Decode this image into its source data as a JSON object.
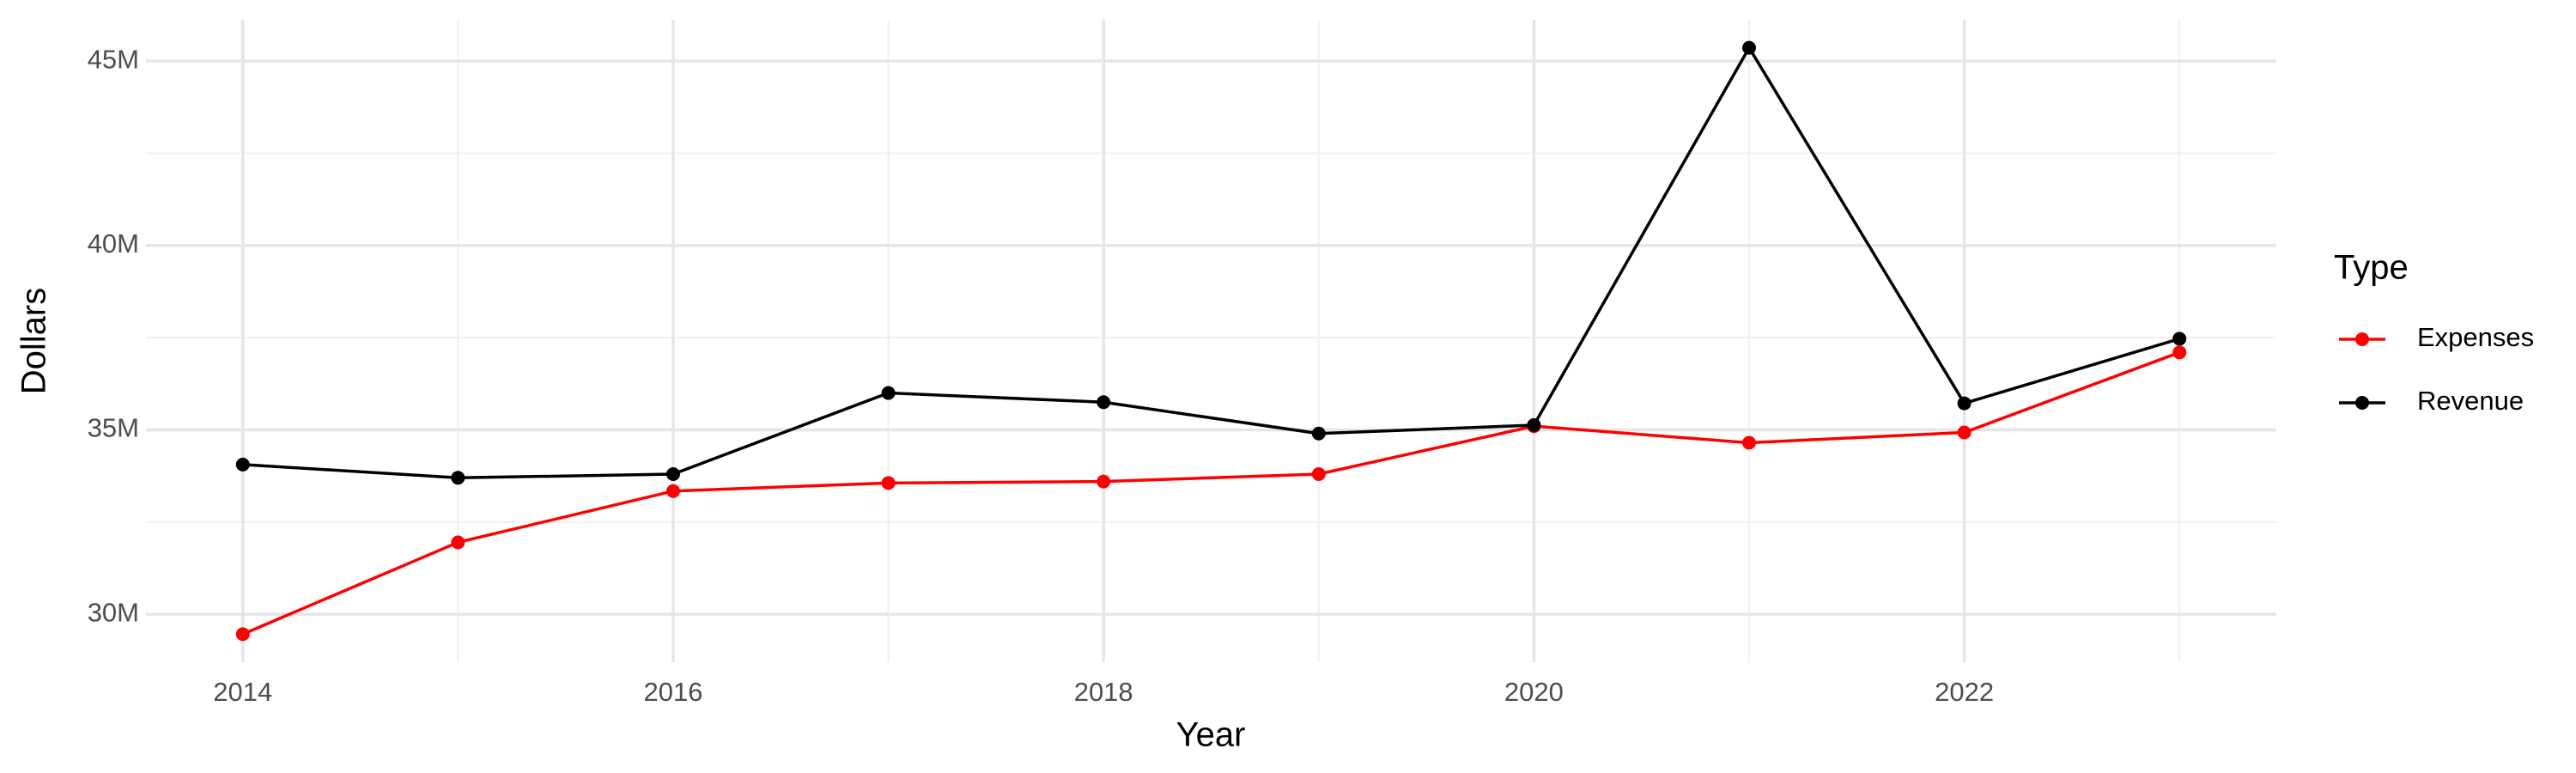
{
  "chart_data": {
    "type": "line",
    "x_label": "Year",
    "y_label": "Dollars",
    "x": [
      2014,
      2015,
      2016,
      2017,
      2018,
      2019,
      2020,
      2021,
      2022,
      2023
    ],
    "series": [
      {
        "name": "Expenses",
        "color": "#ff0000",
        "values": [
          29460000,
          31950000,
          33340000,
          33560000,
          33600000,
          33800000,
          35100000,
          34650000,
          34930000,
          37100000
        ]
      },
      {
        "name": "Revenue",
        "color": "#000000",
        "values": [
          34060000,
          33700000,
          33800000,
          36000000,
          35750000,
          34900000,
          35130000,
          45360000,
          35720000,
          37470000
        ]
      }
    ],
    "xlim": [
      2013.55,
      2023.45
    ],
    "xticks": [
      2014,
      2016,
      2018,
      2020,
      2022
    ],
    "ylim": [
      28700000,
      46120000
    ],
    "yticks": [
      {
        "value": 30000000,
        "label": "30M"
      },
      {
        "value": 35000000,
        "label": "35M"
      },
      {
        "value": 40000000,
        "label": "40M"
      },
      {
        "value": 45000000,
        "label": "45M"
      }
    ],
    "grid": true,
    "legend": "right",
    "legend_title": "Type"
  }
}
